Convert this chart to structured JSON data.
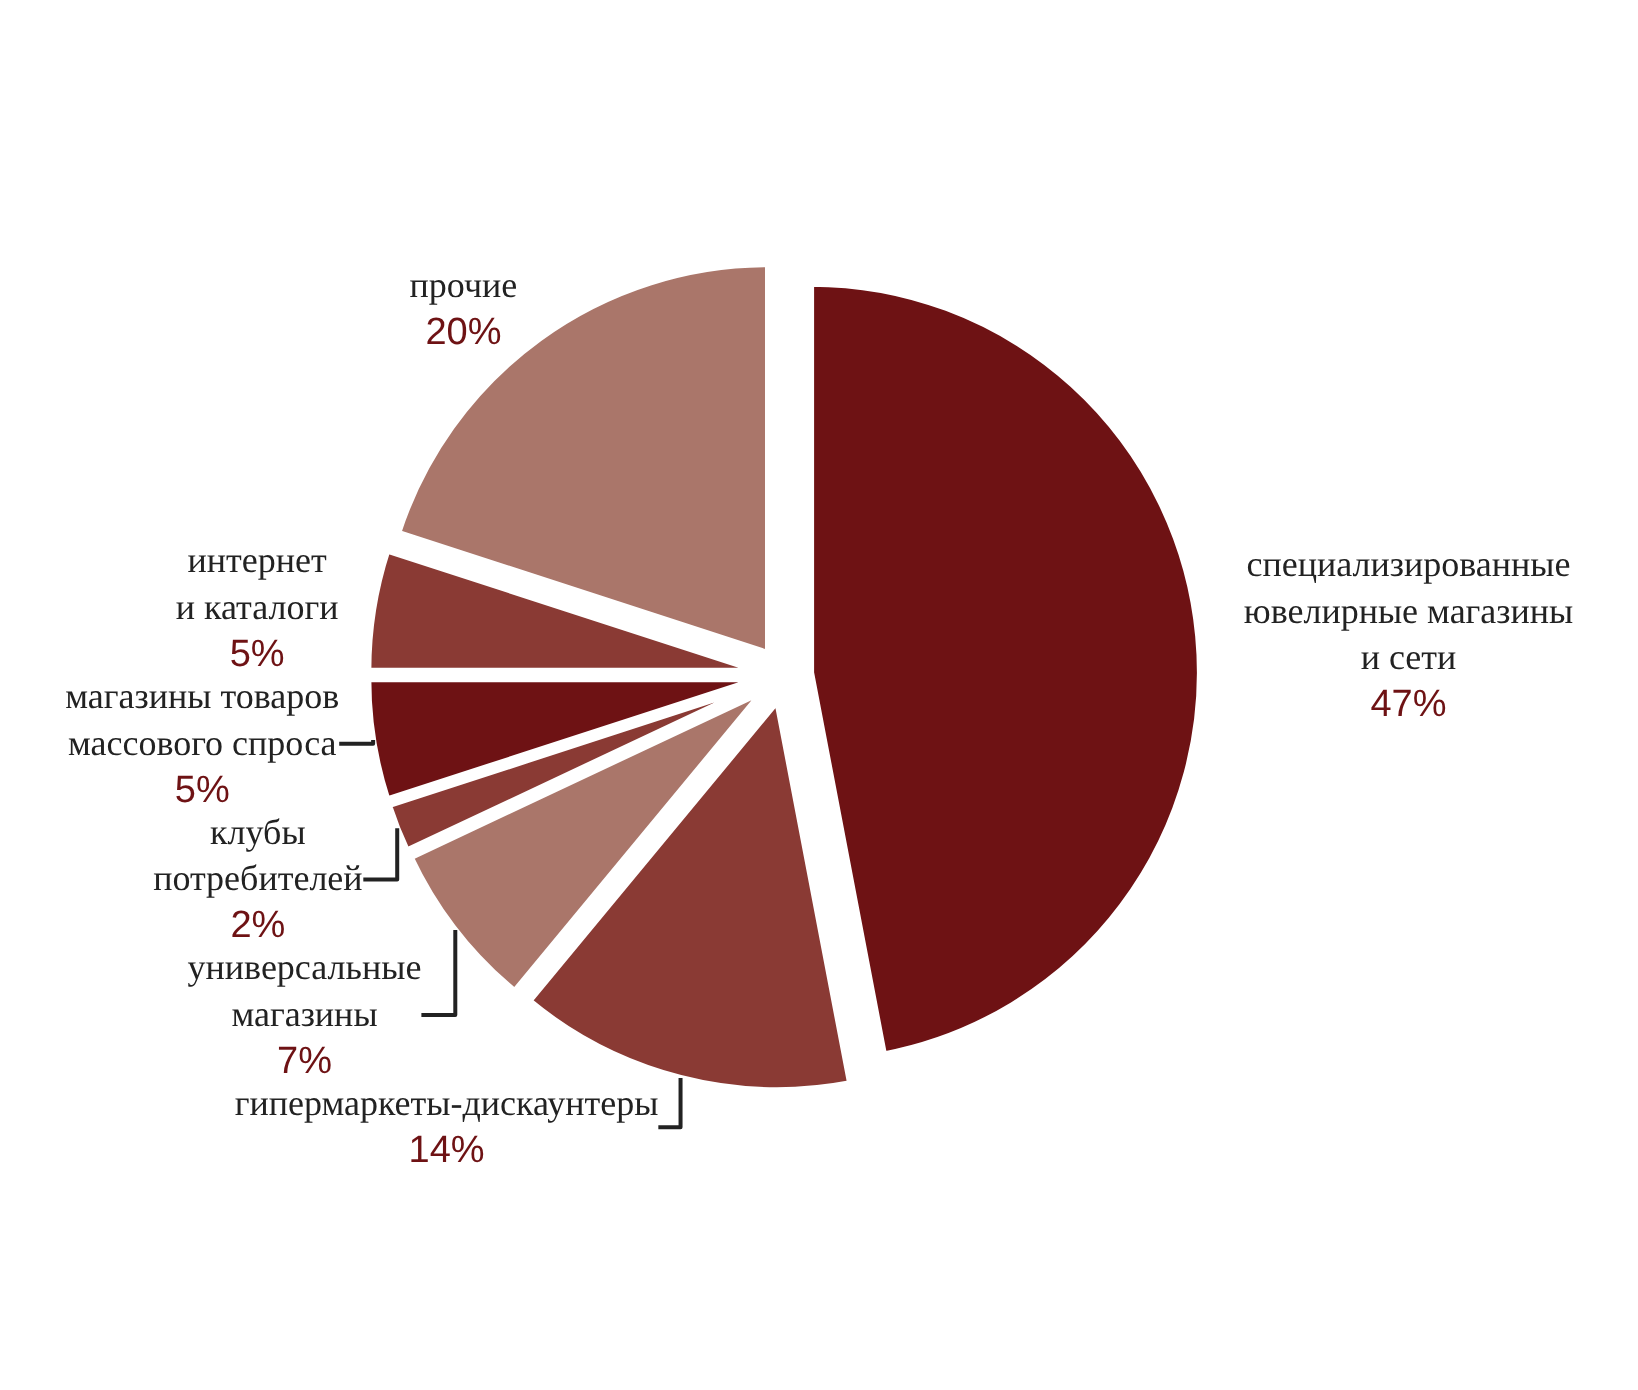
{
  "chart_data": {
    "type": "pie",
    "categories": [
      "специализированные\nювелирные магазины\nи сети",
      "гипермаркеты-дискаунтеры",
      "универсальные\nмагазины",
      "клубы\nпотребителей",
      "магазины товаров\nмассового спроса",
      "интернет\nи каталоги",
      "прочие"
    ],
    "values": [
      47,
      14,
      7,
      2,
      5,
      5,
      20
    ],
    "value_labels": [
      "47%",
      "14%",
      "7%",
      "2%",
      "5%",
      "5%",
      "20%"
    ],
    "colors": [
      "#6e1214",
      "#8a3a34",
      "#aa766a",
      "#8a3a34",
      "#6e1214",
      "#8a3a34",
      "#aa766a"
    ],
    "legend": false
  }
}
